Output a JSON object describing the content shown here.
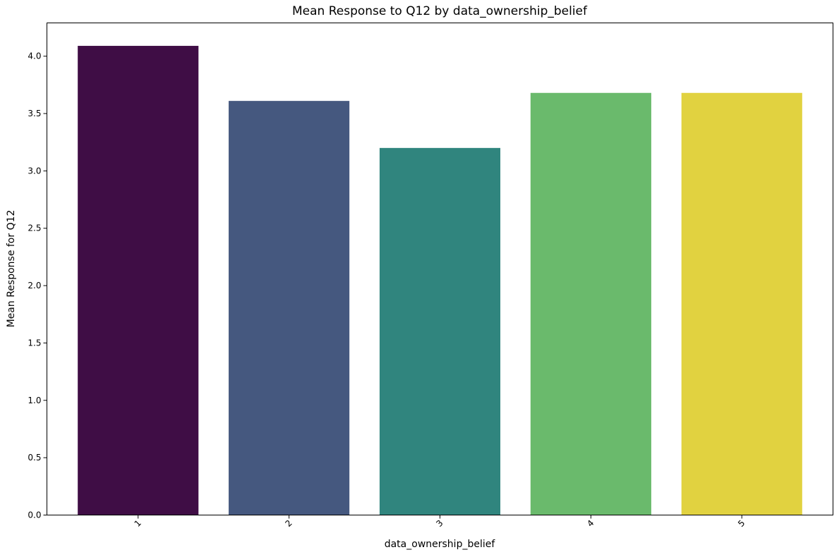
{
  "chart_data": {
    "type": "bar",
    "title": "Mean Response to Q12 by data_ownership_belief",
    "xlabel": "data_ownership_belief",
    "ylabel": "Mean Response for Q12",
    "categories": [
      "1",
      "2",
      "3",
      "4",
      "5"
    ],
    "values": [
      4.09,
      3.61,
      3.2,
      3.68,
      3.68
    ],
    "colors": [
      "#3f0d45",
      "#45587f",
      "#30857e",
      "#6aba6c",
      "#e1d240"
    ],
    "ylim": [
      0,
      4.29
    ],
    "yticks": [
      "0.0",
      "0.5",
      "1.0",
      "1.5",
      "2.0",
      "2.5",
      "3.0",
      "3.5",
      "4.0"
    ],
    "grid": false,
    "legend": "none"
  }
}
